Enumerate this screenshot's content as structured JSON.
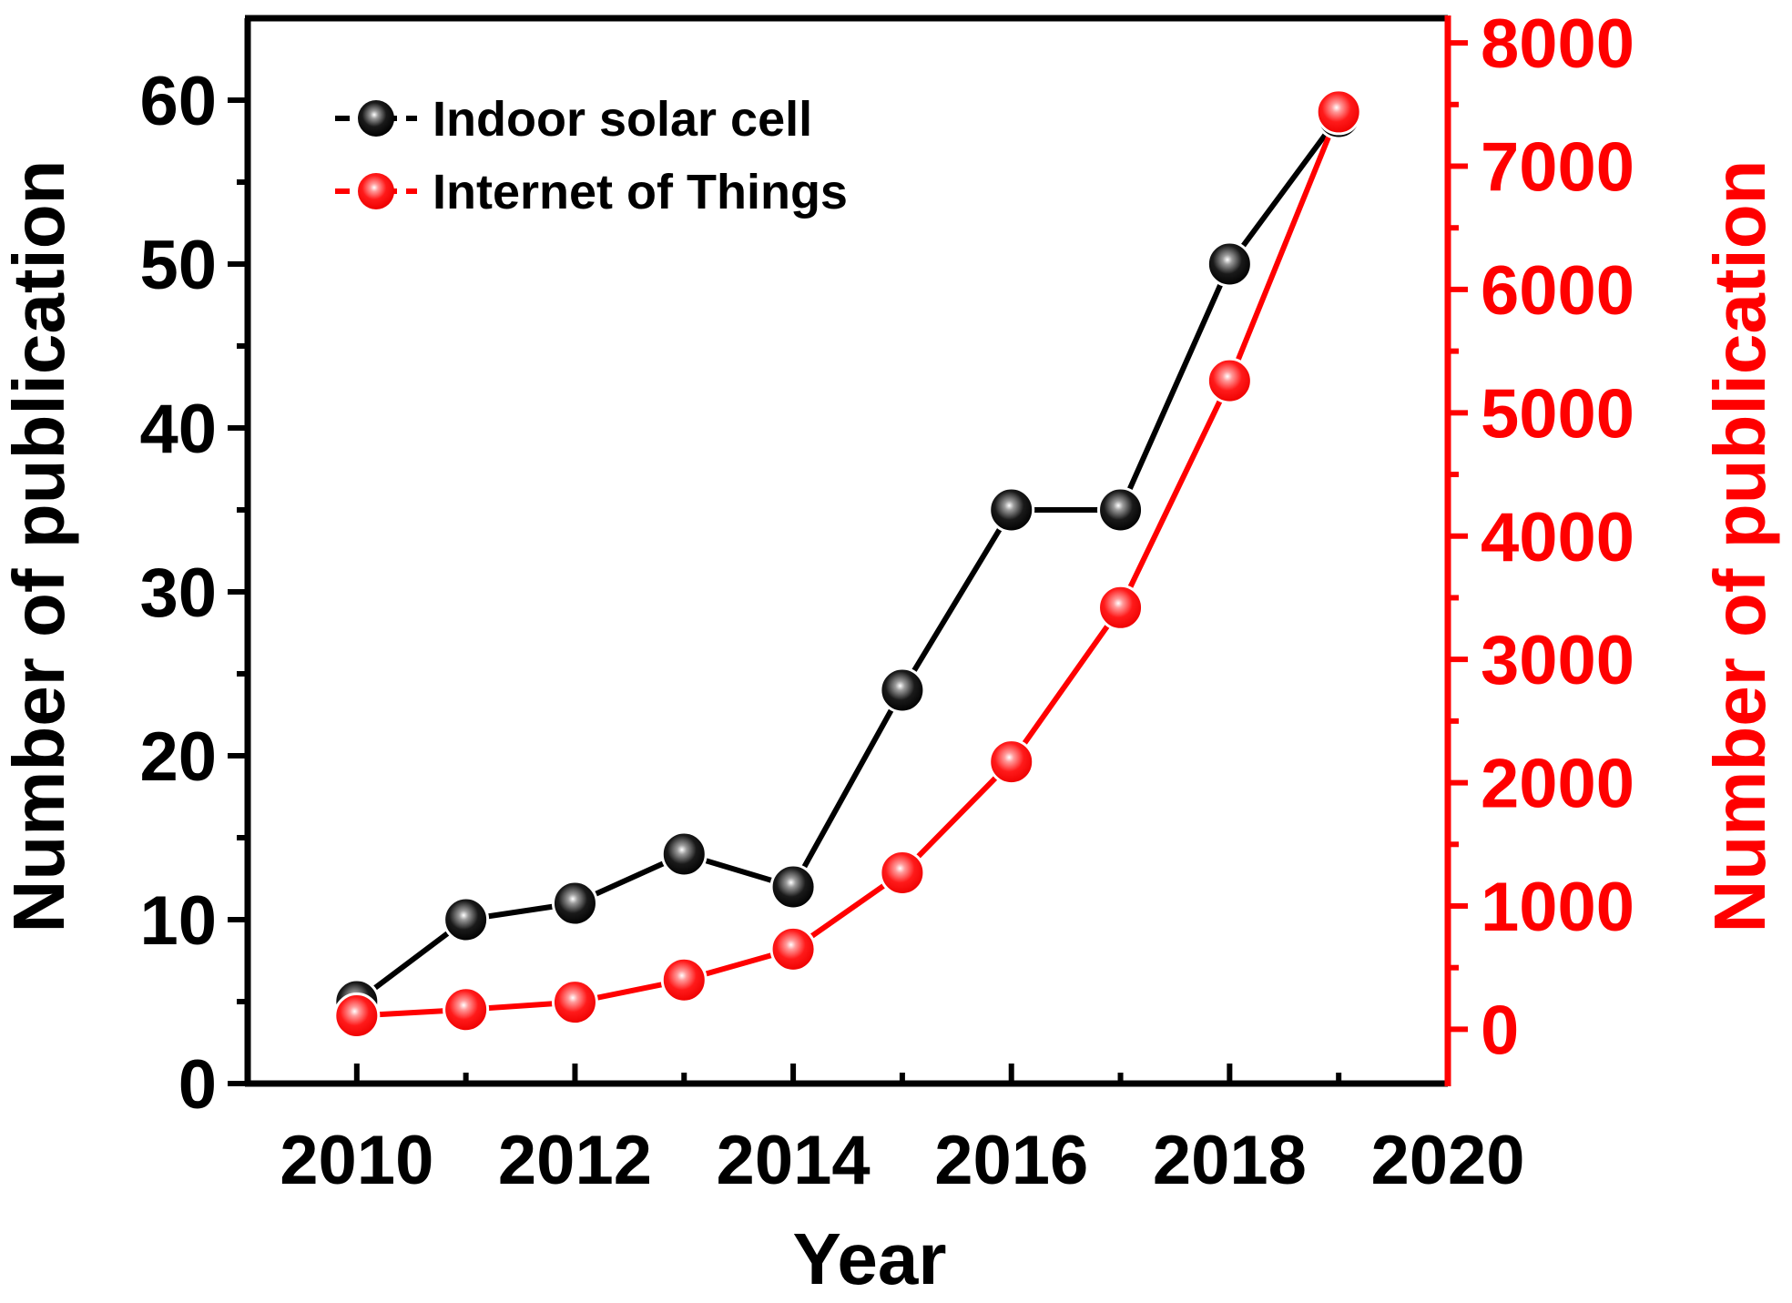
{
  "chart_data": {
    "type": "line",
    "title": "",
    "xlabel": "Year",
    "ylabel": "Number of publication",
    "y2label": "Number of publication",
    "xlim": [
      2009,
      2020
    ],
    "ylim": [
      0,
      65
    ],
    "y2lim": [
      -440,
      8200
    ],
    "x_ticks": [
      2010,
      2012,
      2014,
      2016,
      2018,
      2020
    ],
    "x_minor_ticks": [
      2011,
      2013,
      2015,
      2017,
      2019
    ],
    "y_ticks": [
      0,
      10,
      20,
      30,
      40,
      50,
      60
    ],
    "y2_ticks": [
      0,
      1000,
      2000,
      3000,
      4000,
      5000,
      6000,
      7000,
      8000
    ],
    "legend_position": "top-left",
    "series": [
      {
        "name": "Indoor solar cell",
        "axis": "left",
        "color": "#000000",
        "x": [
          2010,
          2011,
          2012,
          2013,
          2014,
          2015,
          2016,
          2017,
          2018,
          2019
        ],
        "values": [
          5,
          10,
          11,
          14,
          12,
          24,
          35,
          35,
          50,
          59
        ]
      },
      {
        "name": "Internet of Things",
        "axis": "right",
        "color": "#ff0000",
        "x": [
          2010,
          2011,
          2012,
          2013,
          2014,
          2015,
          2016,
          2017,
          2018,
          2019
        ],
        "values": [
          110,
          160,
          220,
          400,
          650,
          1270,
          2170,
          3420,
          5260,
          7440
        ]
      }
    ]
  }
}
